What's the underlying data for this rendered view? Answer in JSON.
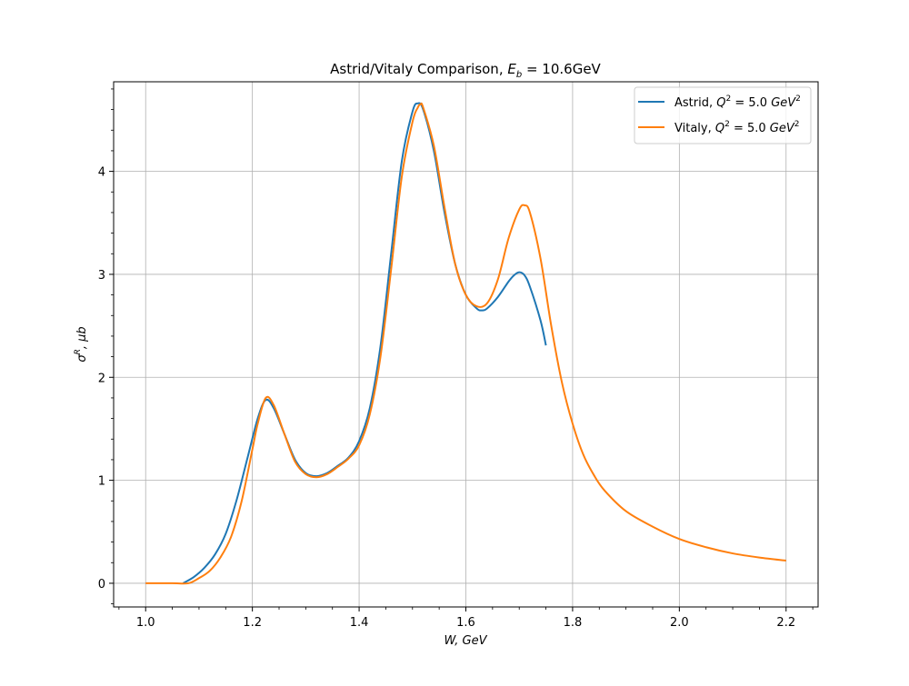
{
  "chart_data": {
    "type": "line",
    "title": "Astrid/Vitaly Comparison, E_b = 10.6GeV",
    "title_main": "Astrid/Vitaly Comparison, ",
    "title_math_var": "E",
    "title_math_sub": "b",
    "title_math_rest": " = 10.6GeV",
    "xlabel": "W, GeV",
    "ylabel": "σ^R, μb",
    "xlim": [
      0.94,
      2.26
    ],
    "ylim": [
      -0.23,
      4.87
    ],
    "x_ticks": [
      1.0,
      1.2,
      1.4,
      1.6,
      1.8,
      2.0,
      2.2
    ],
    "x_tick_labels": [
      "1.0",
      "1.2",
      "1.4",
      "1.6",
      "1.8",
      "2.0",
      "2.2"
    ],
    "y_ticks": [
      0,
      1,
      2,
      3,
      4
    ],
    "y_tick_labels": [
      "0",
      "1",
      "2",
      "3",
      "4"
    ],
    "grid": true,
    "legend_position": "top-right",
    "series": [
      {
        "name": "Astrid, Q^2 = 5.0 GeV^2",
        "legend_prefix": "Astrid, ",
        "color": "#1f77b4",
        "x": [
          1.07,
          1.09,
          1.11,
          1.13,
          1.15,
          1.17,
          1.19,
          1.21,
          1.225,
          1.24,
          1.26,
          1.28,
          1.3,
          1.32,
          1.34,
          1.36,
          1.38,
          1.4,
          1.42,
          1.44,
          1.46,
          1.48,
          1.5,
          1.51,
          1.52,
          1.54,
          1.56,
          1.58,
          1.6,
          1.62,
          1.63,
          1.64,
          1.66,
          1.68,
          1.69,
          1.7,
          1.71,
          1.72,
          1.74,
          1.75
        ],
        "y": [
          0.0,
          0.06,
          0.15,
          0.28,
          0.48,
          0.8,
          1.2,
          1.6,
          1.78,
          1.7,
          1.45,
          1.2,
          1.07,
          1.04,
          1.07,
          1.14,
          1.22,
          1.38,
          1.7,
          2.3,
          3.2,
          4.1,
          4.58,
          4.66,
          4.6,
          4.2,
          3.6,
          3.1,
          2.8,
          2.67,
          2.65,
          2.67,
          2.78,
          2.93,
          2.99,
          3.02,
          2.99,
          2.88,
          2.55,
          2.31
        ]
      },
      {
        "name": "Vitaly, Q^2 = 5.0 GeV^2",
        "legend_prefix": "Vitaly, ",
        "color": "#ff7f0e",
        "x": [
          1.0,
          1.05,
          1.08,
          1.1,
          1.12,
          1.14,
          1.16,
          1.18,
          1.2,
          1.21,
          1.225,
          1.24,
          1.26,
          1.28,
          1.3,
          1.32,
          1.34,
          1.36,
          1.38,
          1.4,
          1.42,
          1.44,
          1.46,
          1.48,
          1.5,
          1.51,
          1.515,
          1.52,
          1.54,
          1.56,
          1.58,
          1.6,
          1.62,
          1.64,
          1.66,
          1.68,
          1.7,
          1.71,
          1.72,
          1.74,
          1.76,
          1.78,
          1.8,
          1.82,
          1.84,
          1.86,
          1.9,
          1.95,
          2.0,
          2.05,
          2.1,
          2.15,
          2.2
        ],
        "y": [
          0.0,
          0.0,
          0.0,
          0.05,
          0.12,
          0.25,
          0.45,
          0.8,
          1.3,
          1.55,
          1.8,
          1.73,
          1.45,
          1.18,
          1.06,
          1.03,
          1.06,
          1.13,
          1.21,
          1.34,
          1.64,
          2.2,
          3.05,
          3.95,
          4.48,
          4.62,
          4.65,
          4.62,
          4.25,
          3.65,
          3.1,
          2.8,
          2.69,
          2.72,
          2.95,
          3.35,
          3.63,
          3.67,
          3.6,
          3.15,
          2.5,
          1.95,
          1.55,
          1.25,
          1.05,
          0.9,
          0.7,
          0.55,
          0.43,
          0.35,
          0.29,
          0.25,
          0.22
        ]
      }
    ]
  },
  "colors": {
    "series_a": "#1f77b4",
    "series_b": "#ff7f0e",
    "grid": "#b0b0b0"
  }
}
